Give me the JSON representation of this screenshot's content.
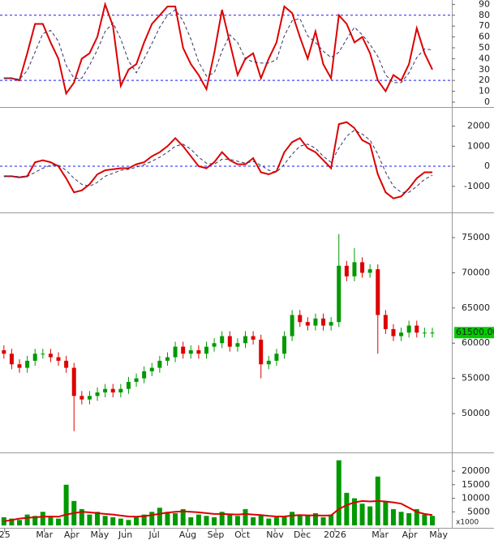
{
  "chart_data": [
    {
      "type": "line",
      "xlim": [
        -0.5,
        57.5
      ],
      "ylim": [
        -3,
        94
      ],
      "yticks": [
        0,
        10,
        20,
        30,
        40,
        50,
        60,
        70,
        80,
        90
      ],
      "levels": [
        20,
        80
      ],
      "level_color": "#1a1aff",
      "series": [
        {
          "color": "#dd0000",
          "dashed": false,
          "values": [
            22,
            22,
            20,
            45,
            72,
            72,
            55,
            40,
            8,
            18,
            40,
            45,
            60,
            90,
            70,
            15,
            30,
            35,
            55,
            72,
            80,
            88,
            88,
            50,
            35,
            25,
            12,
            45,
            85,
            55,
            25,
            40,
            45,
            22,
            40,
            55,
            88,
            82,
            60,
            40,
            65,
            35,
            22,
            80,
            72,
            55,
            60,
            45,
            20,
            10,
            25,
            20,
            35,
            68,
            45,
            30
          ]
        },
        {
          "color": "#333366",
          "dashed": true,
          "values": [
            22,
            22,
            21,
            29,
            46,
            63,
            66,
            56,
            34,
            22,
            22,
            34,
            48,
            65,
            73,
            58,
            38,
            27,
            40,
            54,
            69,
            80,
            85,
            75,
            58,
            37,
            24,
            27,
            47,
            62,
            55,
            40,
            37,
            36,
            36,
            39,
            61,
            75,
            77,
            61,
            55,
            47,
            41,
            46,
            58,
            69,
            62,
            53,
            42,
            25,
            18,
            18,
            27,
            41,
            49,
            48
          ]
        }
      ]
    },
    {
      "type": "line",
      "xlim": [
        -0.5,
        57.5
      ],
      "ylim": [
        -2220,
        2830
      ],
      "yticks": [
        -1000,
        0,
        1000,
        2000
      ],
      "levels": [
        0
      ],
      "level_color": "#1a1aff",
      "series": [
        {
          "color": "#dd0000",
          "dashed": false,
          "values": [
            -500,
            -500,
            -550,
            -500,
            200,
            300,
            200,
            0,
            -600,
            -1300,
            -1200,
            -900,
            -400,
            -200,
            -150,
            -100,
            -100,
            100,
            200,
            500,
            700,
            1000,
            1400,
            1000,
            500,
            0,
            -100,
            200,
            700,
            300,
            100,
            100,
            400,
            -300,
            -400,
            -250,
            700,
            1200,
            1400,
            900,
            700,
            300,
            -100,
            2100,
            2200,
            1900,
            1300,
            1100,
            -400,
            -1300,
            -1600,
            -1500,
            -1100,
            -600,
            -300,
            -300
          ]
        },
        {
          "color": "#333366",
          "dashed": true,
          "values": [
            -500,
            -500,
            -520,
            -510,
            -300,
            -100,
            50,
            50,
            -200,
            -600,
            -900,
            -1000,
            -800,
            -500,
            -350,
            -200,
            -150,
            -50,
            80,
            250,
            450,
            700,
            1000,
            1100,
            850,
            450,
            150,
            100,
            350,
            350,
            250,
            150,
            250,
            50,
            -200,
            -300,
            100,
            600,
            1000,
            1100,
            900,
            500,
            200,
            900,
            1500,
            1800,
            1600,
            1300,
            600,
            -300,
            -1000,
            -1300,
            -1300,
            -1000,
            -650,
            -450
          ]
        }
      ]
    },
    {
      "type": "candlestick",
      "xlim": [
        -0.5,
        57.5
      ],
      "ylim": [
        44820,
        78230
      ],
      "yticks": [
        50000,
        55000,
        60000,
        65000,
        70000,
        75000
      ],
      "up_color": "#009900",
      "down_color": "#dd0000",
      "open": [
        59000,
        58500,
        57000,
        56500,
        57500,
        58500,
        58500,
        58000,
        57500,
        56500,
        52500,
        52000,
        52500,
        53000,
        53500,
        53000,
        53500,
        54500,
        55000,
        56000,
        56500,
        57500,
        58000,
        59500,
        58500,
        59000,
        58500,
        59500,
        60000,
        61000,
        59500,
        60000,
        61000,
        60500,
        57000,
        57500,
        58500,
        61000,
        64000,
        63000,
        62500,
        63500,
        62500,
        63000,
        71000,
        69500,
        71500,
        70000,
        70500,
        64000,
        62000,
        61000,
        61500,
        62500,
        61500,
        61500
      ],
      "high": [
        59700,
        59200,
        57700,
        58200,
        59200,
        59200,
        59200,
        58700,
        58200,
        57200,
        53200,
        53200,
        53700,
        54200,
        54200,
        54200,
        55200,
        55700,
        56700,
        57200,
        58200,
        58700,
        60200,
        60200,
        59700,
        59700,
        60200,
        60700,
        61700,
        61700,
        60700,
        61700,
        61700,
        61200,
        58200,
        59200,
        61700,
        64700,
        64700,
        63700,
        64200,
        64200,
        63700,
        75500,
        71700,
        73500,
        72200,
        71200,
        71200,
        64700,
        62700,
        62200,
        63200,
        63200,
        62200,
        62200
      ],
      "low": [
        57800,
        56300,
        55800,
        55800,
        56800,
        57800,
        57300,
        56800,
        55800,
        47500,
        51300,
        51300,
        51800,
        52300,
        52300,
        52300,
        52800,
        53800,
        54300,
        55300,
        55800,
        56800,
        57300,
        57800,
        57800,
        57800,
        57800,
        58800,
        59300,
        58800,
        58800,
        59300,
        59800,
        55000,
        56300,
        56800,
        57800,
        60300,
        62300,
        61800,
        61800,
        61800,
        61800,
        62300,
        68800,
        68800,
        69300,
        69300,
        58500,
        61300,
        60300,
        60300,
        60800,
        60800,
        60800,
        60800
      ],
      "close": [
        58500,
        57000,
        56500,
        57500,
        58500,
        58500,
        58000,
        57500,
        56500,
        52500,
        52000,
        52500,
        53000,
        53500,
        53000,
        53500,
        54500,
        55000,
        56000,
        56500,
        57500,
        58000,
        59500,
        58500,
        59000,
        58500,
        59500,
        60000,
        61000,
        59500,
        60000,
        61000,
        60500,
        57000,
        57500,
        58500,
        61000,
        64000,
        63000,
        62500,
        63500,
        62500,
        63000,
        71000,
        69500,
        71500,
        70000,
        70500,
        64000,
        62000,
        61000,
        61500,
        62500,
        61500,
        61500,
        61500
      ],
      "last_price": {
        "value": 61500,
        "label": "61500.00"
      },
      "last_price_color": "#00cc00"
    },
    {
      "type": "bar",
      "xlim": [
        -0.5,
        57.5
      ],
      "ylim": [
        -600,
        26000
      ],
      "yticks": [
        5000,
        10000,
        15000,
        20000
      ],
      "unit_label": "x1000",
      "xticks": [
        {
          "value": 0.1,
          "label": "25"
        },
        {
          "value": 5.2,
          "label": "Mar"
        },
        {
          "value": 8.7,
          "label": "Apr"
        },
        {
          "value": 12.3,
          "label": "May"
        },
        {
          "value": 15.6,
          "label": "Jun"
        },
        {
          "value": 19.3,
          "label": "Jul"
        },
        {
          "value": 23.6,
          "label": "Aug"
        },
        {
          "value": 27.2,
          "label": "Sep"
        },
        {
          "value": 30.6,
          "label": "Oct"
        },
        {
          "value": 34.8,
          "label": "Nov"
        },
        {
          "value": 38.3,
          "label": "Dec"
        },
        {
          "value": 42.5,
          "label": "2026"
        },
        {
          "value": 48.3,
          "label": "Mar"
        },
        {
          "value": 52.1,
          "label": "Apr"
        },
        {
          "value": 55.8,
          "label": "May"
        }
      ],
      "series": [
        {
          "type": "bar",
          "color": "#009900",
          "values": [
            3000,
            2500,
            2000,
            4000,
            3500,
            5000,
            3000,
            2500,
            15000,
            9000,
            6000,
            4000,
            5000,
            3500,
            3000,
            2500,
            2000,
            3000,
            4000,
            5000,
            6500,
            5000,
            4500,
            6000,
            3000,
            4000,
            3500,
            3000,
            5000,
            4000,
            3500,
            6000,
            3000,
            4000,
            2500,
            3000,
            3500,
            5000,
            4000,
            3500,
            4500,
            3000,
            4000,
            24000,
            12000,
            10000,
            8000,
            7000,
            18000,
            9000,
            6000,
            5000,
            4500,
            6000,
            4000,
            3500
          ]
        },
        {
          "type": "line",
          "color": "#dd0000",
          "values": [
            1500,
            2000,
            2500,
            2800,
            3000,
            3200,
            3300,
            3200,
            4000,
            4500,
            5000,
            4800,
            4500,
            4200,
            4000,
            3600,
            3300,
            3200,
            3400,
            3800,
            4300,
            4700,
            5000,
            5200,
            5000,
            4800,
            4500,
            4200,
            4200,
            4100,
            4000,
            4200,
            4000,
            3800,
            3500,
            3300,
            3300,
            3600,
            3800,
            3700,
            3700,
            3600,
            3700,
            6000,
            7500,
            8500,
            9000,
            8800,
            9000,
            8800,
            8500,
            8000,
            6500,
            5000,
            4200,
            3800
          ]
        }
      ]
    }
  ]
}
